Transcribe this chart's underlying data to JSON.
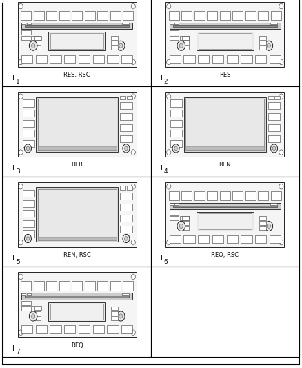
{
  "background_color": "#ffffff",
  "cells": [
    {
      "label": "RES, RSC",
      "number": "1",
      "type": "RES"
    },
    {
      "label": "RES",
      "number": "2",
      "type": "RES"
    },
    {
      "label": "RER",
      "number": "3",
      "type": "RER"
    },
    {
      "label": "REN",
      "number": "4",
      "type": "REN"
    },
    {
      "label": "REN, RSC",
      "number": "5",
      "type": "REN"
    },
    {
      "label": "REO, RSC",
      "number": "6",
      "type": "REO"
    },
    {
      "label": "REQ",
      "number": "7",
      "type": "REO"
    },
    {
      "label": "",
      "number": "",
      "type": "empty"
    }
  ],
  "cols": 2,
  "rows": 4,
  "fig_width": 4.38,
  "fig_height": 5.33,
  "dpi": 100,
  "outer_lw": 1.2,
  "cell_lw": 0.8,
  "radio_lw": 0.7,
  "btn_lw": 0.4,
  "btn_color": "#ffffff",
  "btn_edge": "#333333",
  "body_color": "#f5f5f5",
  "body_edge": "#222222",
  "screen_color": "#e0e0e0",
  "slot_color": "#555555",
  "knob_color": "#e8e8e8",
  "knob_edge": "#222222"
}
